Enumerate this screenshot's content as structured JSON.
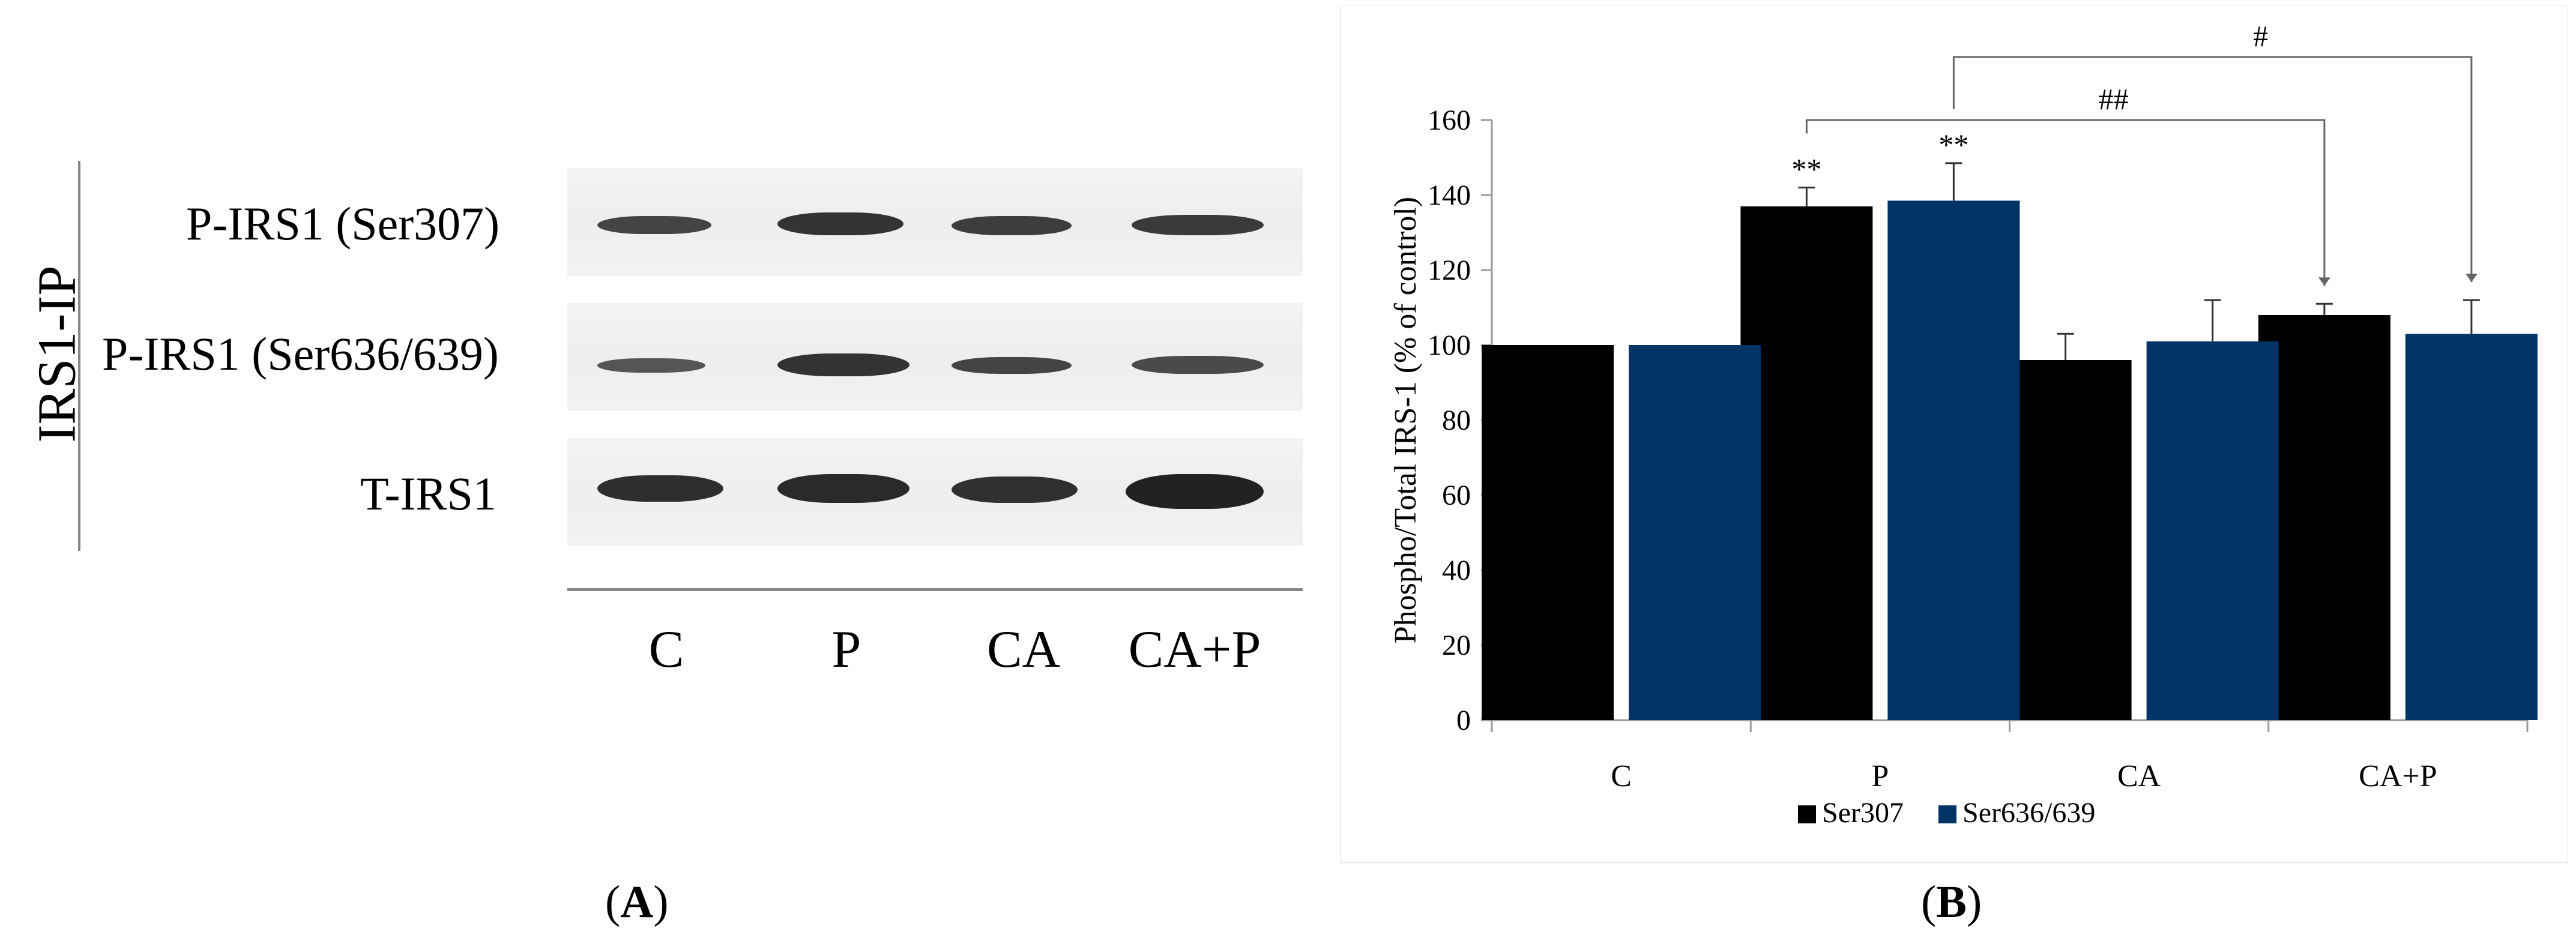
{
  "panel_a": {
    "side_label": "IRS1-IP",
    "rows": [
      "P-IRS1 (Ser307)",
      "P-IRS1 (Ser636/639)",
      "T-IRS1"
    ],
    "lanes": [
      "C",
      "P",
      "CA",
      "CA+P"
    ],
    "caption_open": "(",
    "caption_letter": "A",
    "caption_close": ")"
  },
  "panel_b": {
    "caption_open": "(",
    "caption_letter": "B",
    "caption_close": ")"
  },
  "chart_data": {
    "type": "bar",
    "categories": [
      "C",
      "P",
      "CA",
      "CA+P"
    ],
    "series": [
      {
        "name": "Ser307",
        "values": [
          100,
          137,
          96,
          108
        ],
        "errors": [
          0,
          5,
          7,
          3
        ],
        "color": "#000000"
      },
      {
        "name": "Ser636/639",
        "values": [
          100,
          138.5,
          101,
          103
        ],
        "errors": [
          0,
          10,
          11,
          9
        ],
        "color": "#003366"
      }
    ],
    "ylabel": "Phospho/Total IRS-1 (% of control)",
    "xlabel": "",
    "ylim": [
      0,
      160
    ],
    "yticks": [
      0,
      20,
      40,
      60,
      80,
      100,
      120,
      140,
      160
    ],
    "grid": false,
    "legend_position": "bottom",
    "annotations": {
      "asterisks": [
        {
          "category": "P",
          "series": "Ser307",
          "text": "**"
        },
        {
          "category": "P",
          "series": "Ser636/639",
          "text": "**"
        }
      ],
      "brackets": [
        {
          "from_category": "P",
          "from_series": "Ser307",
          "to_category": "CA+P",
          "to_series": "Ser307",
          "text": "##"
        },
        {
          "from_category": "P",
          "from_series": "Ser636/639",
          "to_category": "CA+P",
          "to_series": "Ser636/639",
          "text": "#"
        }
      ]
    }
  }
}
